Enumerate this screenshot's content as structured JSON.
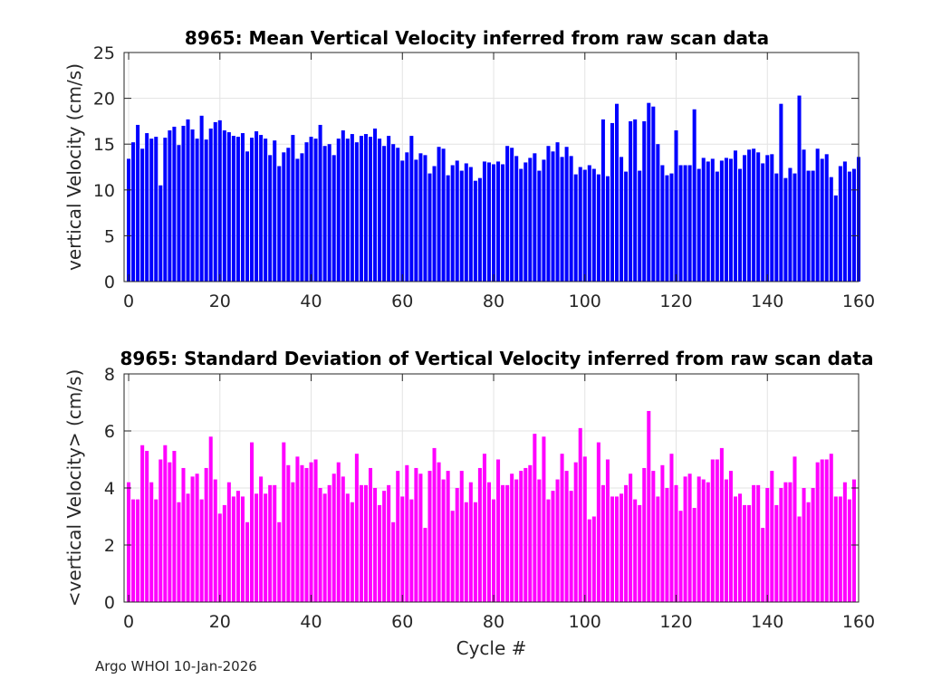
{
  "footer": "Argo WHOI 10-Jan-2026",
  "chart_data": [
    {
      "type": "bar",
      "title": "8965: Mean Vertical Velocity inferred from raw scan data",
      "xlabel": "",
      "ylabel": "vertical Velocity (cm/s)",
      "xlim": [
        -1,
        160
      ],
      "ylim": [
        0,
        25
      ],
      "xticks": [
        0,
        20,
        40,
        60,
        80,
        100,
        120,
        140,
        160
      ],
      "yticks": [
        0,
        5,
        10,
        15,
        20,
        25
      ],
      "grid": true,
      "color": "#0000ff",
      "x_start": 0,
      "values": [
        13.4,
        15.2,
        17.1,
        14.5,
        16.2,
        15.6,
        15.8,
        10.5,
        15.7,
        16.5,
        16.9,
        14.9,
        17.0,
        17.7,
        16.6,
        15.6,
        18.1,
        15.5,
        16.7,
        17.4,
        17.6,
        16.5,
        16.3,
        15.9,
        15.8,
        16.2,
        14.2,
        15.7,
        16.4,
        16.0,
        15.6,
        13.8,
        15.4,
        12.6,
        14.1,
        14.6,
        16.0,
        13.4,
        14.0,
        15.2,
        15.8,
        15.6,
        17.1,
        14.8,
        15.0,
        13.8,
        15.6,
        16.5,
        15.6,
        16.1,
        15.2,
        15.9,
        16.1,
        15.8,
        16.7,
        15.6,
        14.8,
        15.9,
        15.0,
        14.6,
        13.2,
        14.1,
        15.9,
        13.3,
        14.0,
        13.8,
        11.8,
        12.6,
        14.7,
        14.5,
        11.6,
        12.7,
        13.2,
        12.1,
        12.9,
        12.5,
        11.0,
        11.3,
        13.1,
        13.0,
        12.8,
        13.1,
        12.8,
        14.8,
        14.6,
        13.7,
        12.3,
        13.0,
        13.5,
        14.0,
        12.1,
        13.3,
        14.8,
        14.2,
        15.2,
        13.6,
        14.7,
        13.7,
        11.7,
        12.5,
        12.2,
        12.7,
        12.3,
        11.7,
        17.7,
        11.5,
        17.3,
        19.4,
        13.6,
        12.0,
        17.5,
        17.7,
        12.1,
        17.5,
        19.5,
        19.1,
        15.0,
        12.7,
        11.6,
        11.8,
        16.5,
        12.7,
        12.7,
        12.7,
        18.8,
        12.3,
        13.5,
        13.1,
        13.4,
        12.0,
        13.2,
        13.5,
        13.4,
        14.3,
        12.3,
        13.8,
        14.4,
        14.5,
        14.1,
        12.9,
        13.8,
        13.9,
        11.8,
        19.4,
        11.3,
        12.4,
        11.8,
        20.3,
        14.4,
        12.1,
        12.1,
        14.5,
        13.4,
        13.9,
        11.4,
        9.4,
        12.6,
        13.1,
        12.0,
        12.3,
        13.6
      ]
    },
    {
      "type": "bar",
      "title": "8965: Standard Deviation of Vertical Velocity inferred from raw scan data",
      "xlabel": "Cycle #",
      "ylabel": "<vertical Velocity> (cm/s)",
      "xlim": [
        -1,
        160
      ],
      "ylim": [
        0,
        8
      ],
      "xticks": [
        0,
        20,
        40,
        60,
        80,
        100,
        120,
        140,
        160
      ],
      "yticks": [
        0,
        2,
        4,
        6,
        8
      ],
      "grid": true,
      "color": "#ff00ff",
      "x_start": 0,
      "values": [
        4.2,
        3.6,
        3.6,
        5.5,
        5.3,
        4.2,
        3.6,
        5.0,
        5.5,
        4.9,
        5.3,
        3.5,
        4.7,
        3.8,
        4.4,
        4.5,
        3.6,
        4.7,
        5.8,
        4.3,
        3.1,
        3.4,
        4.2,
        3.7,
        3.9,
        3.7,
        2.8,
        5.6,
        3.8,
        4.4,
        3.8,
        4.1,
        4.1,
        2.8,
        5.6,
        4.8,
        4.2,
        5.1,
        4.8,
        4.7,
        4.9,
        5.0,
        4.0,
        3.8,
        4.1,
        4.5,
        4.9,
        4.4,
        3.8,
        3.5,
        5.2,
        4.1,
        4.1,
        4.7,
        4.0,
        3.4,
        3.9,
        4.1,
        2.8,
        4.6,
        3.7,
        4.8,
        3.6,
        4.7,
        4.5,
        2.6,
        4.6,
        5.4,
        4.9,
        4.3,
        4.6,
        3.2,
        4.0,
        4.6,
        3.5,
        4.2,
        3.5,
        4.7,
        5.2,
        4.2,
        3.6,
        5.0,
        4.1,
        4.1,
        4.5,
        4.3,
        4.6,
        4.7,
        4.8,
        5.9,
        4.3,
        5.8,
        3.6,
        3.9,
        4.3,
        5.2,
        4.6,
        3.9,
        4.9,
        6.1,
        5.1,
        2.9,
        3.0,
        5.6,
        4.1,
        5.0,
        3.7,
        3.7,
        3.8,
        4.1,
        4.5,
        3.6,
        3.4,
        4.7,
        6.7,
        4.6,
        3.7,
        4.8,
        4.0,
        5.2,
        4.1,
        3.2,
        4.4,
        4.5,
        3.3,
        4.4,
        4.3,
        4.2,
        5.0,
        5.0,
        5.4,
        4.3,
        4.6,
        3.7,
        3.8,
        3.4,
        3.4,
        4.1,
        4.1,
        2.6,
        4.0,
        4.6,
        3.4,
        4.0,
        4.2,
        4.2,
        5.1,
        3.0,
        4.0,
        3.5,
        4.0,
        4.9,
        5.0,
        5.0,
        5.2,
        3.7,
        3.7,
        4.2,
        3.6,
        4.3
      ]
    }
  ]
}
